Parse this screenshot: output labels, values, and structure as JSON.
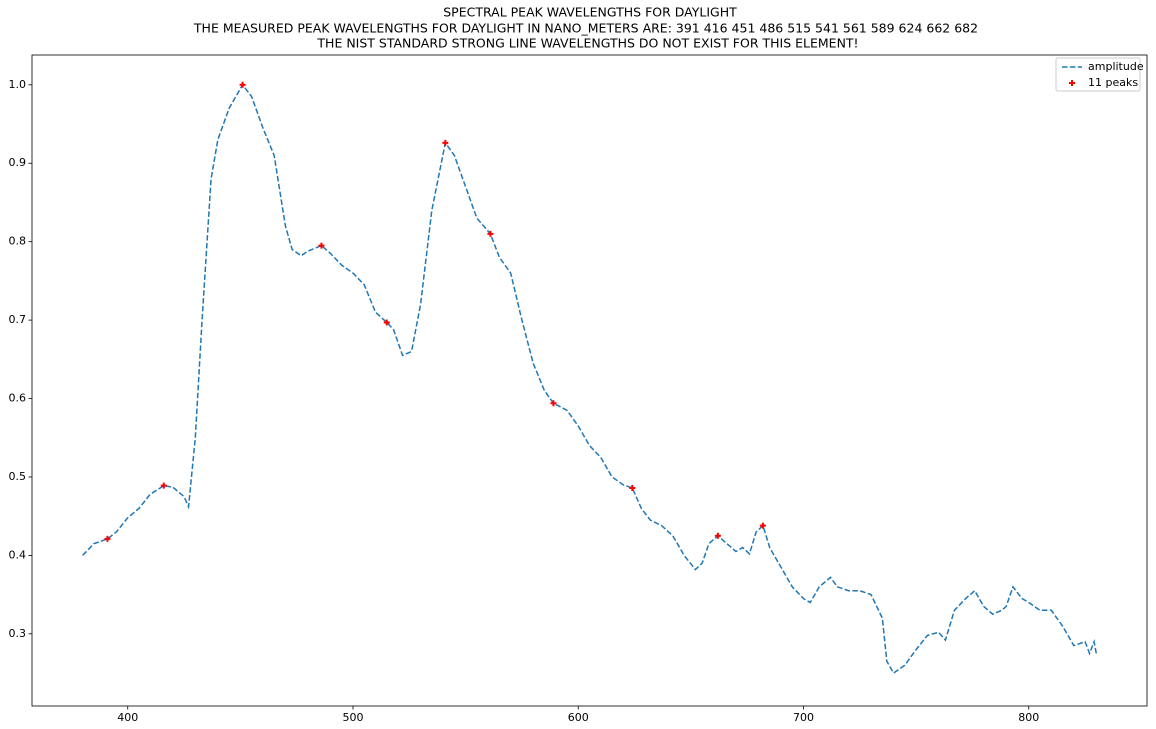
{
  "chart_data": {
    "type": "line",
    "title": "SPECTRAL PEAK WAVELENGTHS FOR DAYLIGHT",
    "subtitle": "THE MEASURED PEAK WAVELENGTHS FOR DAYLIGHT IN NANO_METERS ARE: 391 416 451 486 515 541 561 589 624 662 682",
    "note": "THE NIST STANDARD STRONG LINE WAVELENGTHS DO NOT EXIST FOR THIS ELEMENT!",
    "xlim": [
      357.5,
      852.5
    ],
    "ylim": [
      0.208,
      1.038
    ],
    "xticks": [
      400,
      500,
      600,
      700,
      800
    ],
    "yticks": [
      0.3,
      0.4,
      0.5,
      0.6,
      0.7,
      0.8,
      0.9,
      {
        "value": 1,
        "label": "1.0"
      }
    ],
    "grid": false,
    "legend": "upper right",
    "series": [
      {
        "name": "amplitude",
        "color": "#1f77b4",
        "style": "dashed",
        "x": [
          380,
          385,
          390,
          391,
          395,
          400,
          405,
          410,
          415,
          416,
          420,
          425,
          427,
          430,
          433,
          437,
          440,
          445,
          451,
          455,
          460,
          465,
          470,
          473,
          477,
          480,
          486,
          490,
          495,
          500,
          505,
          510,
          515,
          518,
          522,
          526,
          530,
          535,
          541,
          545,
          550,
          555,
          561,
          565,
          570,
          575,
          580,
          585,
          589,
          595,
          600,
          605,
          610,
          615,
          620,
          624,
          628,
          632,
          637,
          642,
          647,
          652,
          655,
          658,
          662,
          666,
          670,
          673,
          676,
          679,
          682,
          685,
          690,
          695,
          700,
          703,
          707,
          712,
          715,
          720,
          725,
          730,
          735,
          737,
          740,
          745,
          750,
          755,
          760,
          763,
          767,
          772,
          776,
          780,
          784,
          788,
          790,
          793,
          797,
          800,
          805,
          810,
          815,
          820,
          825,
          827,
          829,
          830
        ],
        "values": [
          0.4,
          0.415,
          0.42,
          0.421,
          0.43,
          0.448,
          0.46,
          0.478,
          0.487,
          0.489,
          0.487,
          0.475,
          0.462,
          0.55,
          0.7,
          0.88,
          0.93,
          0.97,
          1.0,
          0.985,
          0.945,
          0.91,
          0.82,
          0.79,
          0.782,
          0.788,
          0.795,
          0.785,
          0.77,
          0.76,
          0.745,
          0.71,
          0.697,
          0.688,
          0.655,
          0.66,
          0.72,
          0.84,
          0.926,
          0.91,
          0.87,
          0.83,
          0.81,
          0.78,
          0.76,
          0.7,
          0.645,
          0.61,
          0.594,
          0.585,
          0.565,
          0.54,
          0.525,
          0.5,
          0.49,
          0.486,
          0.46,
          0.445,
          0.438,
          0.425,
          0.4,
          0.382,
          0.39,
          0.415,
          0.425,
          0.415,
          0.405,
          0.41,
          0.402,
          0.43,
          0.438,
          0.41,
          0.385,
          0.36,
          0.345,
          0.34,
          0.36,
          0.372,
          0.36,
          0.355,
          0.355,
          0.35,
          0.32,
          0.265,
          0.25,
          0.26,
          0.28,
          0.298,
          0.302,
          0.292,
          0.33,
          0.345,
          0.355,
          0.335,
          0.325,
          0.33,
          0.335,
          0.36,
          0.345,
          0.34,
          0.33,
          0.33,
          0.31,
          0.285,
          0.29,
          0.275,
          0.29,
          0.275
        ]
      },
      {
        "name": "11 peaks",
        "color": "#ff0000",
        "style": "markers",
        "x": [
          391,
          416,
          451,
          486,
          515,
          541,
          561,
          589,
          624,
          662,
          682
        ],
        "values": [
          0.421,
          0.489,
          1.0,
          0.795,
          0.697,
          0.926,
          0.81,
          0.594,
          0.486,
          0.425,
          0.438
        ]
      }
    ]
  }
}
